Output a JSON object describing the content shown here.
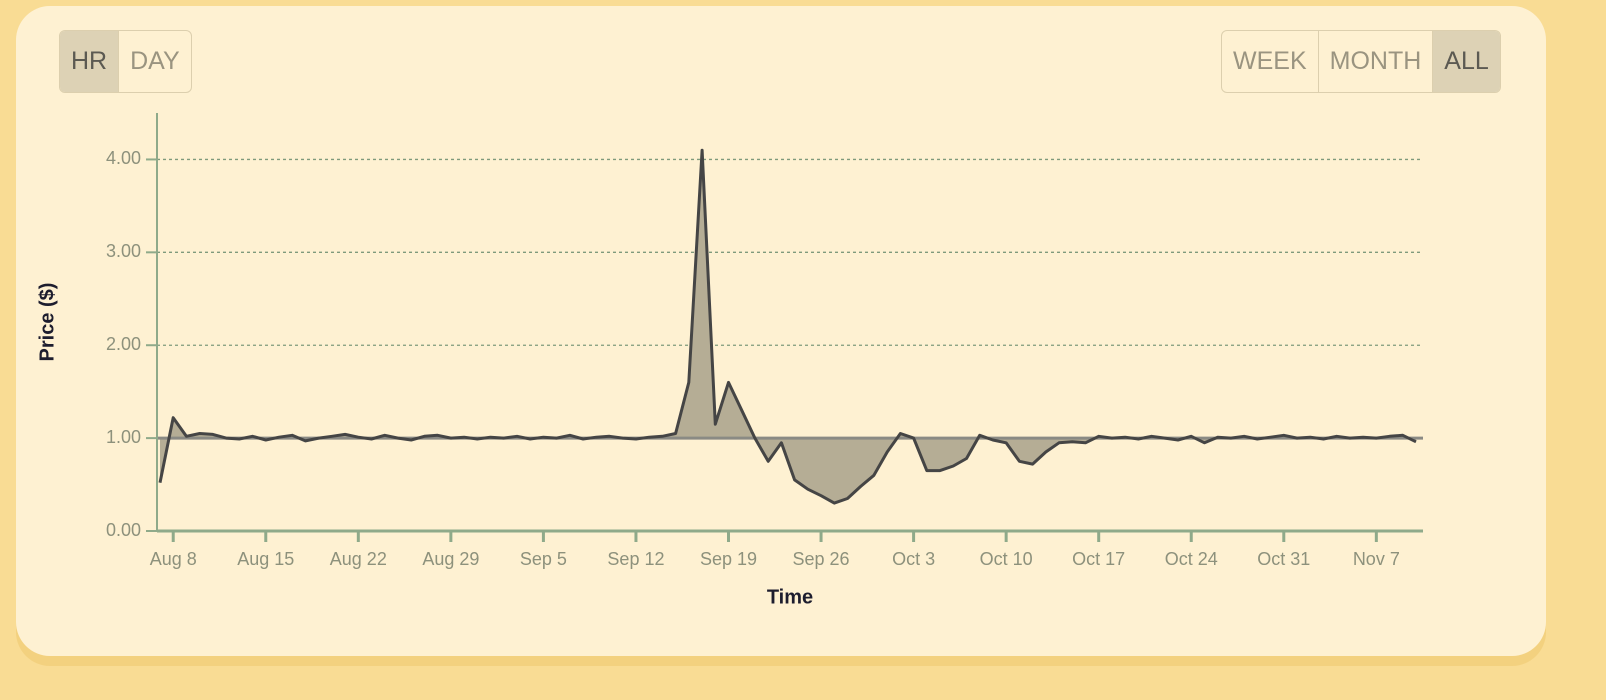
{
  "controls": {
    "left": [
      "HR",
      "DAY"
    ],
    "right": [
      "WEEK",
      "MONTH",
      "ALL"
    ],
    "active": [
      "HR",
      "ALL"
    ]
  },
  "chart_data": {
    "type": "area-line",
    "y_label": "Price ($)",
    "x_label": "Time",
    "categories": [
      null,
      "Aug 8",
      null,
      null,
      null,
      null,
      null,
      null,
      "Aug 15",
      null,
      null,
      null,
      null,
      null,
      null,
      "Aug 22",
      null,
      null,
      null,
      null,
      null,
      null,
      "Aug 29",
      null,
      null,
      null,
      null,
      null,
      null,
      "Sep 5",
      null,
      null,
      null,
      null,
      null,
      null,
      "Sep 12",
      null,
      null,
      null,
      null,
      null,
      null,
      "Sep 19",
      null,
      null,
      null,
      null,
      null,
      null,
      "Sep 26",
      null,
      null,
      null,
      null,
      null,
      null,
      "Oct 3",
      null,
      null,
      null,
      null,
      null,
      null,
      "Oct 10",
      null,
      null,
      null,
      null,
      null,
      null,
      "Oct 17",
      null,
      null,
      null,
      null,
      null,
      null,
      "Oct 24",
      null,
      null,
      null,
      null,
      null,
      null,
      "Oct 31",
      null,
      null,
      null,
      null,
      null,
      null,
      "Nov 7",
      null,
      null,
      null
    ],
    "values": [
      0.52,
      1.22,
      1.02,
      1.05,
      1.04,
      1.0,
      0.99,
      1.02,
      0.98,
      1.01,
      1.03,
      0.97,
      1.0,
      1.02,
      1.04,
      1.01,
      0.99,
      1.03,
      1.0,
      0.98,
      1.02,
      1.03,
      1.0,
      1.01,
      0.99,
      1.01,
      1.0,
      1.02,
      0.99,
      1.01,
      1.0,
      1.03,
      0.99,
      1.01,
      1.02,
      1.0,
      0.99,
      1.01,
      1.02,
      1.05,
      1.6,
      4.1,
      1.15,
      1.6,
      1.3,
      1.0,
      0.75,
      0.95,
      0.55,
      0.45,
      0.38,
      0.3,
      0.35,
      0.48,
      0.6,
      0.85,
      1.05,
      1.0,
      0.65,
      0.65,
      0.7,
      0.78,
      1.03,
      0.98,
      0.95,
      0.75,
      0.72,
      0.85,
      0.95,
      0.96,
      0.95,
      1.02,
      1.0,
      1.01,
      0.99,
      1.02,
      1.0,
      0.98,
      1.02,
      0.95,
      1.01,
      1.0,
      1.02,
      0.99,
      1.01,
      1.03,
      1.0,
      1.01,
      0.99,
      1.02,
      1.0,
      1.01,
      1.0,
      1.02,
      1.03,
      0.96
    ],
    "baseline": 1,
    "color": "#454545",
    "fill_color": "#b5ad95",
    "ylim": [
      0,
      4.5
    ],
    "yticks": [
      {
        "value": 0,
        "label": "0.00"
      },
      {
        "value": 1,
        "label": "1.00"
      },
      {
        "value": 2,
        "label": "2.00"
      },
      {
        "value": 3,
        "label": "3.00"
      },
      {
        "value": 4,
        "label": "4.00"
      }
    ],
    "grid": true
  }
}
